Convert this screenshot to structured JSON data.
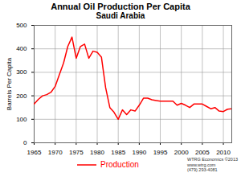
{
  "chart_data": {
    "type": "line",
    "title": "Annual Oil Production Per Capita",
    "subtitle": "Saudi Arabia",
    "y_label": "Barrels Per Capita",
    "x": [
      1965,
      1966,
      1967,
      1968,
      1969,
      1970,
      1971,
      1972,
      1973,
      1974,
      1975,
      1976,
      1977,
      1978,
      1979,
      1980,
      1981,
      1982,
      1983,
      1984,
      1985,
      1986,
      1987,
      1988,
      1989,
      1990,
      1991,
      1992,
      1993,
      1994,
      1995,
      1996,
      1997,
      1998,
      1999,
      2000,
      2001,
      2002,
      2003,
      2004,
      2005,
      2006,
      2007,
      2008,
      2009,
      2010,
      2011,
      2012
    ],
    "series": [
      {
        "name": "Production",
        "color": "#ff0000",
        "values": [
          165,
          185,
          200,
          205,
          215,
          240,
          290,
          340,
          410,
          450,
          360,
          410,
          420,
          360,
          390,
          385,
          365,
          235,
          150,
          130,
          100,
          140,
          120,
          140,
          135,
          160,
          190,
          190,
          183,
          180,
          177,
          177,
          177,
          177,
          160,
          168,
          160,
          150,
          165,
          165,
          165,
          155,
          145,
          150,
          135,
          133,
          143,
          145
        ]
      }
    ],
    "xlim": [
      1965,
      2012
    ],
    "xticks": [
      1965,
      1970,
      1975,
      1980,
      1985,
      1990,
      1995,
      2000,
      2005,
      2010
    ],
    "ylim": [
      0,
      500
    ],
    "yticks": [
      0,
      100,
      200,
      300,
      400,
      500
    ],
    "grid": true,
    "legend": "bottom",
    "annotations": [
      "WTRG Economics ©2013",
      "www.wtrg.com",
      "(479) 293-4081"
    ]
  }
}
